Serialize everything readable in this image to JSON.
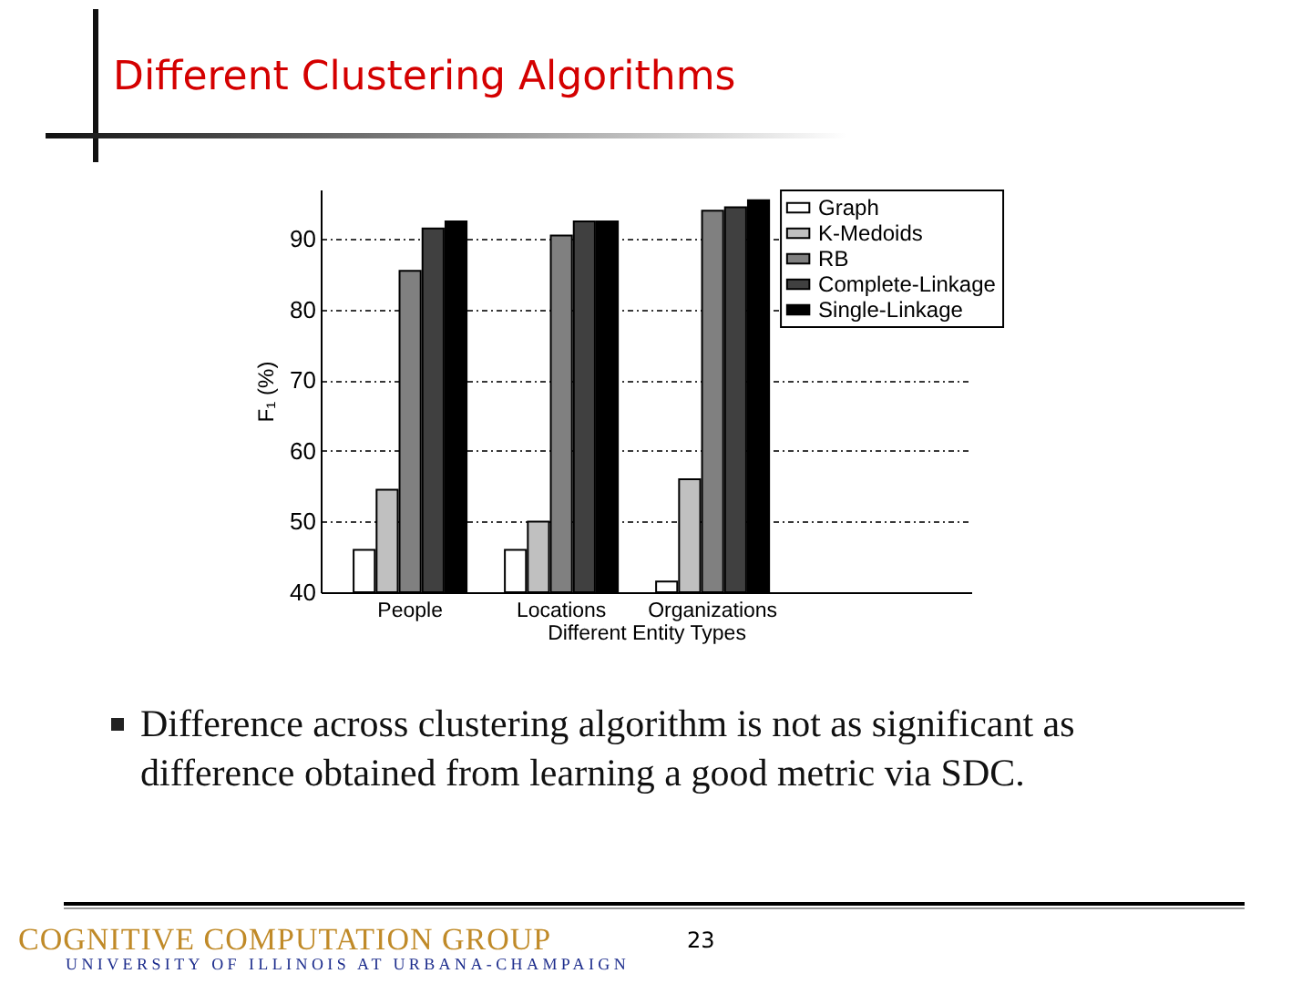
{
  "chart_data": {
    "type": "bar",
    "title": "Different Clustering Algorithms",
    "xlabel": "Different Entity Types",
    "ylabel": "F₁ (%)",
    "categories": [
      "People",
      "Locations",
      "Organizations"
    ],
    "series": [
      {
        "name": "Graph",
        "color": "#ffffff",
        "values": [
          46,
          46,
          41.5
        ]
      },
      {
        "name": "K-Medoids",
        "color": "#c0c0c0",
        "values": [
          54.5,
          50,
          56
        ]
      },
      {
        "name": "RB",
        "color": "#808080",
        "values": [
          85.5,
          90.5,
          94
        ]
      },
      {
        "name": "Complete-Linkage",
        "color": "#404040",
        "values": [
          91.5,
          92.5,
          94.5
        ]
      },
      {
        "name": "Single-Linkage",
        "color": "#000000",
        "values": [
          92.5,
          92.5,
          95.5
        ]
      }
    ],
    "ylim": [
      40,
      97
    ],
    "yticks": [
      40,
      50,
      60,
      70,
      80,
      90
    ],
    "grid": "y",
    "legend": "top right",
    "annotations": [
      "Difference across clustering algorithm is not as significant as difference obtained from learning a good metric via SDC.",
      "COGNITIVE COMPUTATION GROUP",
      "UNIVERSITY OF ILLINOIS AT URBANA-CHAMPAIGN",
      "23"
    ]
  }
}
